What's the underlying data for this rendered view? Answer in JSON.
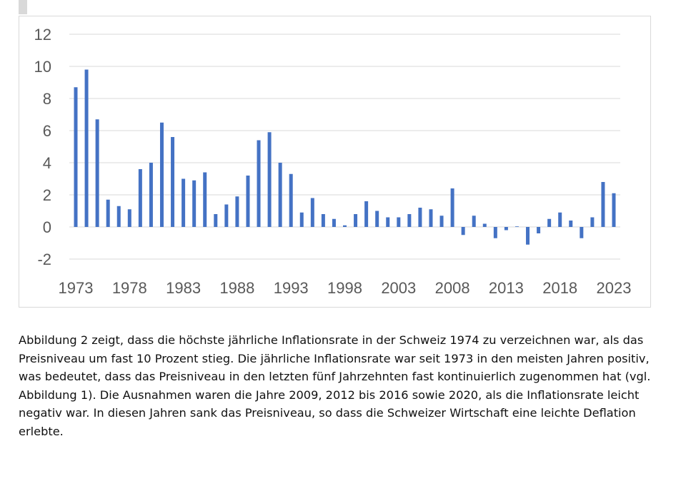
{
  "chart_data": {
    "type": "bar",
    "title": "",
    "xlabel": "",
    "ylabel": "",
    "ylim": [
      -2,
      12
    ],
    "yticks": [
      -2,
      0,
      2,
      4,
      6,
      8,
      10,
      12
    ],
    "xticks": [
      1973,
      1978,
      1983,
      1988,
      1993,
      1998,
      2003,
      2008,
      2013,
      2018,
      2023
    ],
    "grid": true,
    "bar_color": "#4472c4",
    "categories": [
      1973,
      1974,
      1975,
      1976,
      1977,
      1978,
      1979,
      1980,
      1981,
      1982,
      1983,
      1984,
      1985,
      1986,
      1987,
      1988,
      1989,
      1990,
      1991,
      1992,
      1993,
      1994,
      1995,
      1996,
      1997,
      1998,
      1999,
      2000,
      2001,
      2002,
      2003,
      2004,
      2005,
      2006,
      2007,
      2008,
      2009,
      2010,
      2011,
      2012,
      2013,
      2014,
      2015,
      2016,
      2017,
      2018,
      2019,
      2020,
      2021,
      2022,
      2023
    ],
    "values": [
      8.7,
      9.8,
      6.7,
      1.7,
      1.3,
      1.1,
      3.6,
      4.0,
      6.5,
      5.6,
      3.0,
      2.9,
      3.4,
      0.8,
      1.4,
      1.9,
      3.2,
      5.4,
      5.9,
      4.0,
      3.3,
      0.9,
      1.8,
      0.8,
      0.5,
      0.1,
      0.8,
      1.6,
      1.0,
      0.6,
      0.6,
      0.8,
      1.2,
      1.1,
      0.7,
      2.4,
      -0.5,
      0.7,
      0.2,
      -0.7,
      -0.2,
      0.0,
      -1.1,
      -0.4,
      0.5,
      0.9,
      0.4,
      -0.7,
      0.6,
      2.8,
      2.1
    ]
  },
  "paragraph": "Abbildung 2 zeigt, dass die höchste jährliche Inflationsrate in der Schweiz 1974 zu verzeichnen war, als das Preisniveau um fast 10 Prozent stieg. Die jährliche Inflationsrate war seit 1973 in den meisten Jahren positiv, was bedeutet, dass das Preisniveau in den letzten fünf Jahrzehnten fast kontinuierlich zugenommen hat (vgl. Abbildung 1). Die Ausnahmen waren die Jahre 2009, 2012 bis 2016 sowie 2020, als die Inflationsrate leicht negativ war. In diesen Jahren sank das Preisniveau, so dass die Schweizer Wirtschaft eine leichte Deflation erlebte."
}
